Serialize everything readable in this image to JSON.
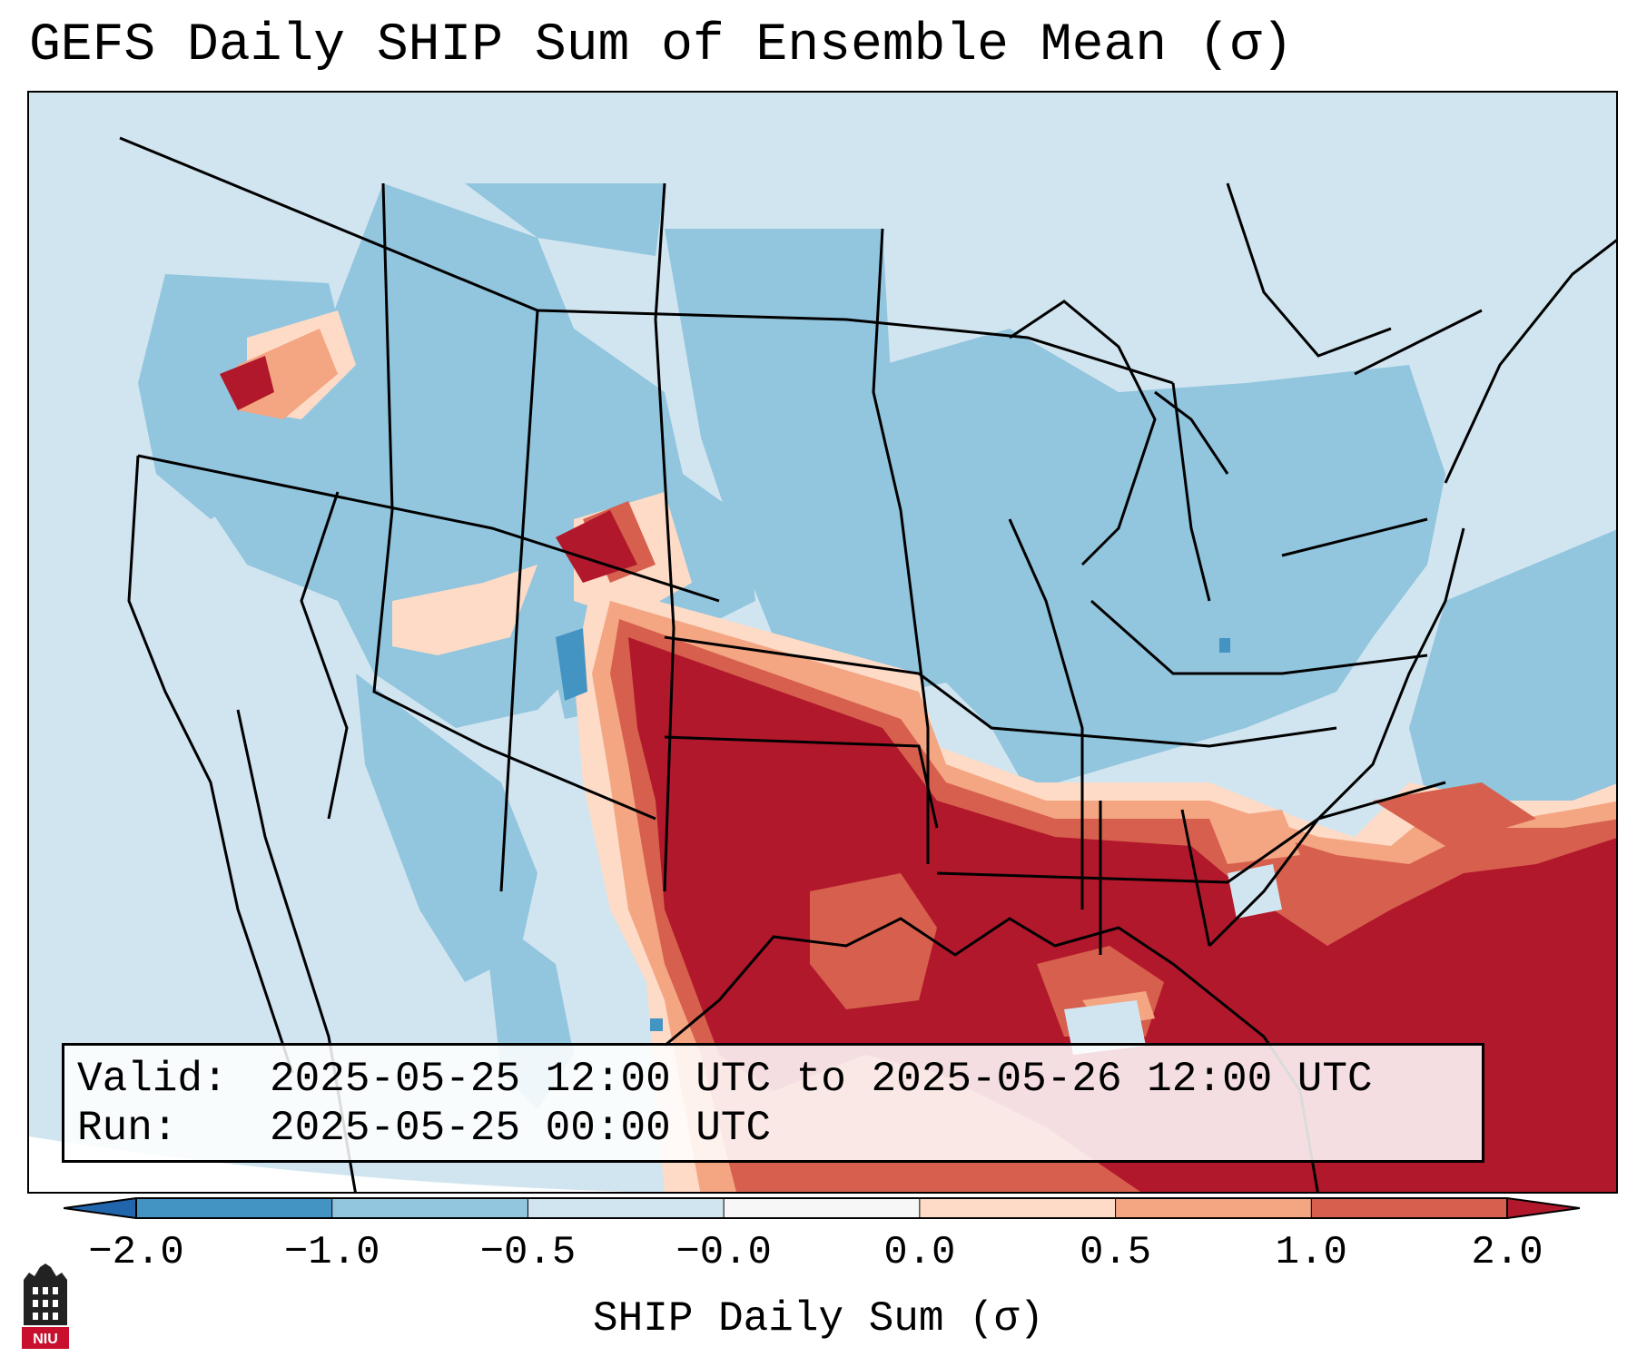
{
  "title": "GEFS Daily SHIP Sum of Ensemble Mean (σ)",
  "info": {
    "valid_label": "Valid:",
    "valid_value": "2025-05-25 12:00 UTC to 2025-05-26 12:00 UTC",
    "run_label": "Run:",
    "run_value": "2025-05-25 00:00 UTC"
  },
  "colorbar": {
    "label": "SHIP Daily Sum (σ)",
    "ticks": [
      "−2.0",
      "−1.0",
      "−0.5",
      "−0.0",
      "0.0",
      "0.5",
      "1.0",
      "2.0"
    ],
    "colors": [
      "#4393c3",
      "#92c5de",
      "#d1e5f0",
      "#f7f7f7",
      "#fddbc7",
      "#f4a582",
      "#d6604d",
      "#b2182b"
    ],
    "extend_low_color": "#2166ac",
    "extend_high_color": "#b2182b"
  },
  "logo": {
    "text": "NIU",
    "color": "#c8102e"
  }
}
